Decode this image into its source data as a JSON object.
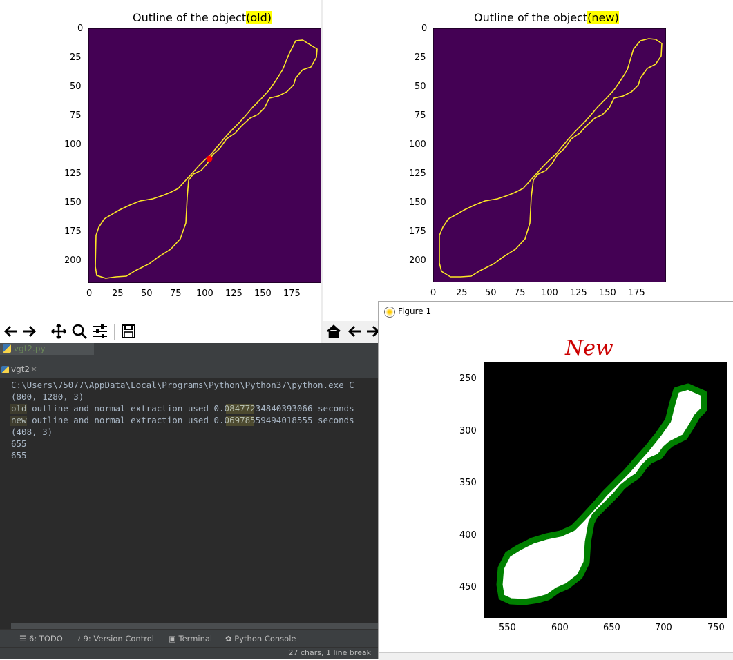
{
  "left_plot": {
    "title_prefix": "Outline of the object",
    "title_highlight": "(old)",
    "yticks": [
      "0",
      "25",
      "50",
      "75",
      "100",
      "125",
      "150",
      "175",
      "200"
    ],
    "xticks": [
      "0",
      "25",
      "50",
      "75",
      "100",
      "125",
      "150",
      "175"
    ],
    "bg_color": "#440154",
    "outline_color": "#fde725",
    "marker_color": "#ff0000"
  },
  "right_plot": {
    "title_prefix": "Outline of the object",
    "title_highlight": "(new)",
    "yticks": [
      "0",
      "25",
      "50",
      "75",
      "100",
      "125",
      "150",
      "175",
      "200"
    ],
    "xticks": [
      "0",
      "25",
      "50",
      "75",
      "100",
      "125",
      "150",
      "175"
    ],
    "bg_color": "#440154",
    "outline_color": "#fde725"
  },
  "toolbar": {
    "icons": [
      "back-arrow-icon",
      "forward-arrow-icon",
      "pan-icon",
      "zoom-icon",
      "configure-icon",
      "save-icon"
    ],
    "right_icons": [
      "home-icon",
      "back-arrow-icon",
      "forward-arrow-icon"
    ]
  },
  "ide": {
    "file_tab": "vgt2.py",
    "run_tab": "vgt2",
    "console_lines": [
      "C:\\Users\\75077\\AppData\\Local\\Programs\\Python\\Python37\\python.exe C",
      "(800, 1280, 3)",
      "old outline and normal extraction used 0.08477234840393066 seconds",
      "new outline and normal extraction used 0.06978559494018555 seconds",
      "(408, 3)",
      "655",
      "655"
    ],
    "tool_windows": [
      "6: TODO",
      "9: Version Control",
      "Terminal",
      "Python Console"
    ],
    "status": "27 chars, 1 line break",
    "bg": "#2b2b2b",
    "text_color": "#a9b7c6"
  },
  "figure1": {
    "window_title": "Figure 1",
    "annotation": "New",
    "yticks": [
      "250",
      "300",
      "350",
      "400",
      "450"
    ],
    "xticks": [
      "550",
      "600",
      "650",
      "700",
      "750"
    ],
    "fill_color": "#ffffff",
    "outline_color": "#008000",
    "bg_color": "#000000"
  }
}
